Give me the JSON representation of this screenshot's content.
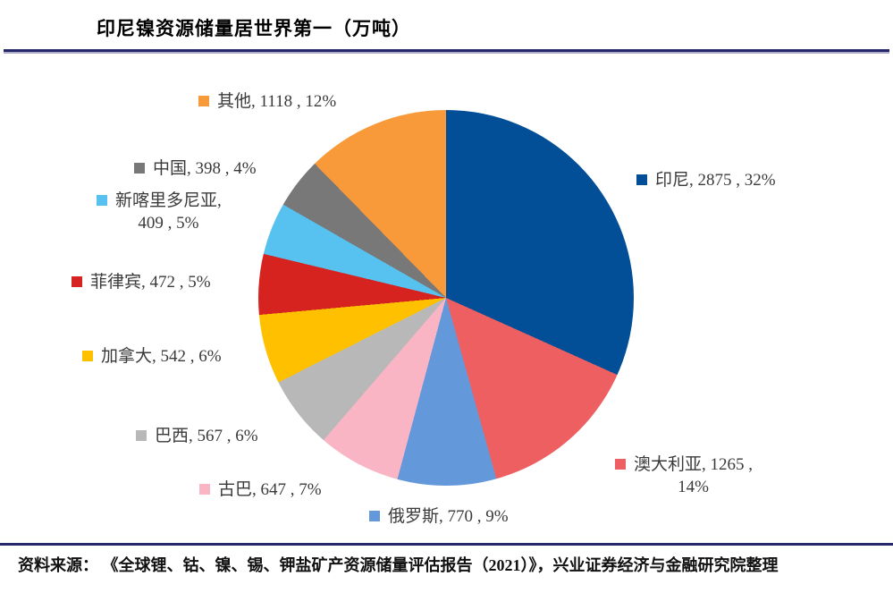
{
  "page": {
    "title": "印尼镍资源储量居世界第一（万吨）",
    "source_text": "资料来源： 《全球锂、钴、镍、锡、钾盐矿产资源储量评估报告（2021）》，兴业证券经济与金融研究院整理"
  },
  "chart_data": {
    "type": "pie",
    "title": "印尼镍资源储量居世界第一（万吨）",
    "unit": "万吨",
    "start_angle_deg": 0,
    "direction": "clockwise",
    "legend_position": "outside-data-labels",
    "label_style": "category, value, percent",
    "slices": [
      {
        "name": "印尼",
        "value": 2875,
        "pct": "32%",
        "color": "#034F97",
        "lines": [
          "印尼, 2875 , 32%"
        ]
      },
      {
        "name": "澳大利亚",
        "value": 1265,
        "pct": "14%",
        "color": "#EE5F62",
        "lines": [
          "澳大利亚, 1265 ,",
          "14%"
        ]
      },
      {
        "name": "俄罗斯",
        "value": 770,
        "pct": "9%",
        "color": "#6398DB",
        "lines": [
          "俄罗斯, 770 , 9%"
        ]
      },
      {
        "name": "古巴",
        "value": 647,
        "pct": "7%",
        "color": "#F9B5C4",
        "lines": [
          "古巴, 647 , 7%"
        ]
      },
      {
        "name": "巴西",
        "value": 567,
        "pct": "6%",
        "color": "#B8B8B8",
        "lines": [
          "巴西, 567 , 6%"
        ]
      },
      {
        "name": "加拿大",
        "value": 542,
        "pct": "6%",
        "color": "#FFC000",
        "lines": [
          "加拿大, 542 , 6%"
        ]
      },
      {
        "name": "菲律宾",
        "value": 472,
        "pct": "5%",
        "color": "#D62320",
        "lines": [
          "菲律宾, 472 , 5%"
        ]
      },
      {
        "name": "新喀里多尼亚",
        "value": 409,
        "pct": "5%",
        "color": "#57C2EF",
        "lines": [
          "新喀里多尼亚,",
          "409 , 5%"
        ]
      },
      {
        "name": "中国",
        "value": 398,
        "pct": "4%",
        "color": "#787878",
        "lines": [
          "中国, 398 , 4%"
        ]
      },
      {
        "name": "其他",
        "value": 1118,
        "pct": "12%",
        "color": "#F89A39",
        "lines": [
          "其他, 1118 , 12%"
        ]
      }
    ]
  }
}
